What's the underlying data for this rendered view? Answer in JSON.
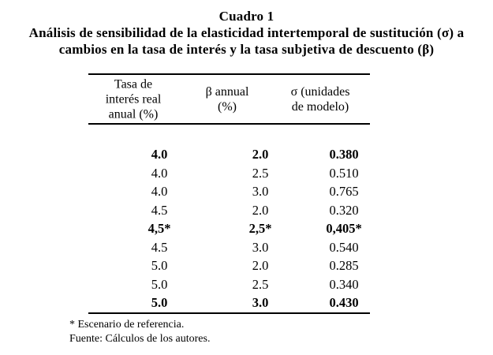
{
  "caption": {
    "title": "Cuadro 1",
    "subtitle_line1": "Análisis de sensibilidad de la elasticidad intertemporal de sustitución (σ) a",
    "subtitle_line2": "cambios en la tasa de interés y la tasa subjetiva de descuento (β)"
  },
  "table": {
    "columns": [
      {
        "lines": [
          "Tasa de",
          "interés real",
          "anual (%)"
        ]
      },
      {
        "lines": [
          "β annual",
          "(%)"
        ]
      },
      {
        "lines": [
          "σ (unidades",
          "de modelo)"
        ]
      }
    ],
    "rows": [
      {
        "cells": [
          "4.0",
          "2.0",
          "0.380"
        ]
      },
      {
        "cells": [
          "4.0",
          "2.5",
          "0.510"
        ]
      },
      {
        "cells": [
          "4.0",
          "3.0",
          "0.765"
        ]
      },
      {
        "cells": [
          "4.5",
          "2.0",
          "0.320"
        ]
      },
      {
        "cells": [
          "4,5*",
          "2,5*",
          "0,405*"
        ]
      },
      {
        "cells": [
          "4.5",
          "3.0",
          "0.540"
        ]
      },
      {
        "cells": [
          "5.0",
          "2.0",
          "0.285"
        ]
      },
      {
        "cells": [
          "5.0",
          "2.5",
          "0.340"
        ]
      },
      {
        "cells": [
          "5.0",
          "3.0",
          "0.430"
        ]
      }
    ]
  },
  "footnotes": [
    "* Escenario de referencia.",
    "Fuente: Cálculos de los autores."
  ],
  "colors": {
    "background": "#ffffff",
    "text": "#000000",
    "rule": "#000000"
  },
  "chart_data": {
    "type": "table",
    "title": "Cuadro 1 — Análisis de sensibilidad de la elasticidad intertemporal de sustitución (σ) a cambios en la tasa de interés y la tasa subjetiva de descuento (β)",
    "columns": [
      "Tasa de interés real anual (%)",
      "β annual (%)",
      "σ (unidades de modelo)"
    ],
    "rows": [
      [
        "4.0",
        "2.0",
        "0.380"
      ],
      [
        "4.0",
        "2.5",
        "0.510"
      ],
      [
        "4.0",
        "3.0",
        "0.765"
      ],
      [
        "4.5",
        "2.0",
        "0.320"
      ],
      [
        "4,5*",
        "2,5*",
        "0,405*"
      ],
      [
        "4.5",
        "3.0",
        "0.540"
      ],
      [
        "5.0",
        "2.0",
        "0.285"
      ],
      [
        "5.0",
        "2.5",
        "0.340"
      ],
      [
        "5.0",
        "3.0",
        "0.430"
      ]
    ],
    "bold_row_indices": [
      0,
      4,
      8
    ],
    "reference_scenario_row_index": 4
  }
}
